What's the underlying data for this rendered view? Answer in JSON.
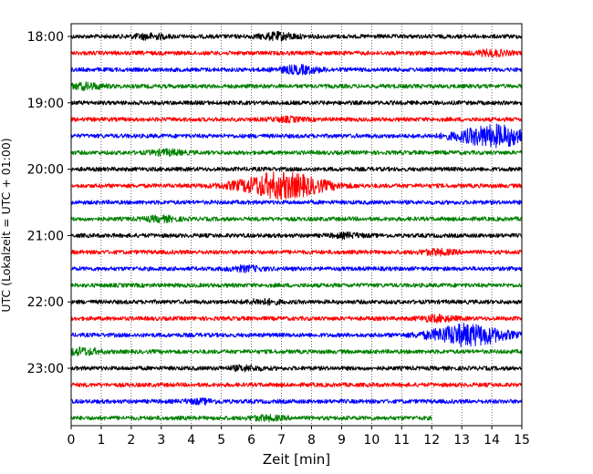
{
  "chart_data": {
    "type": "line",
    "title": "",
    "xlabel": "Zeit  [min]",
    "ylabel": "UTC (Lokalzeit = UTC + 01:00)",
    "xlim": [
      0,
      15
    ],
    "x_ticks": [
      0,
      1,
      2,
      3,
      4,
      5,
      6,
      7,
      8,
      9,
      10,
      11,
      12,
      13,
      14,
      15
    ],
    "y_ticks": [
      "18:00",
      "19:00",
      "20:00",
      "21:00",
      "22:00",
      "23:00"
    ],
    "rows_per_hour": 4,
    "row_minutes": 15,
    "color_cycle": [
      "#000000",
      "#ff0000",
      "#0000ff",
      "#008000"
    ],
    "grid": {
      "vertical": true,
      "style": "dotted"
    },
    "trace_start": "18:00",
    "trace_end": "23:57",
    "events": [
      {
        "row": 0,
        "t": 2.6,
        "amplitude": 1.2
      },
      {
        "row": 0,
        "t": 6.9,
        "amplitude": 1.6
      },
      {
        "row": 1,
        "t": 14.0,
        "amplitude": 1.3
      },
      {
        "row": 2,
        "t": 7.6,
        "amplitude": 1.8
      },
      {
        "row": 3,
        "t": 0.5,
        "amplitude": 1.4
      },
      {
        "row": 5,
        "t": 7.2,
        "amplitude": 1.0
      },
      {
        "row": 6,
        "t": 14.1,
        "amplitude": 5.0
      },
      {
        "row": 7,
        "t": 3.2,
        "amplitude": 1.2
      },
      {
        "row": 9,
        "t": 7.0,
        "amplitude": 6.0
      },
      {
        "row": 11,
        "t": 3.0,
        "amplitude": 1.2
      },
      {
        "row": 12,
        "t": 9.2,
        "amplitude": 1.0
      },
      {
        "row": 13,
        "t": 12.2,
        "amplitude": 1.2
      },
      {
        "row": 14,
        "t": 5.8,
        "amplitude": 1.2
      },
      {
        "row": 16,
        "t": 6.4,
        "amplitude": 1.1
      },
      {
        "row": 17,
        "t": 12.2,
        "amplitude": 1.4
      },
      {
        "row": 18,
        "t": 13.2,
        "amplitude": 5.0
      },
      {
        "row": 19,
        "t": 0.3,
        "amplitude": 1.6
      },
      {
        "row": 20,
        "t": 5.8,
        "amplitude": 1.1
      },
      {
        "row": 22,
        "t": 4.3,
        "amplitude": 1.0
      },
      {
        "row": 23,
        "t": 6.5,
        "amplitude": 1.1
      }
    ]
  }
}
